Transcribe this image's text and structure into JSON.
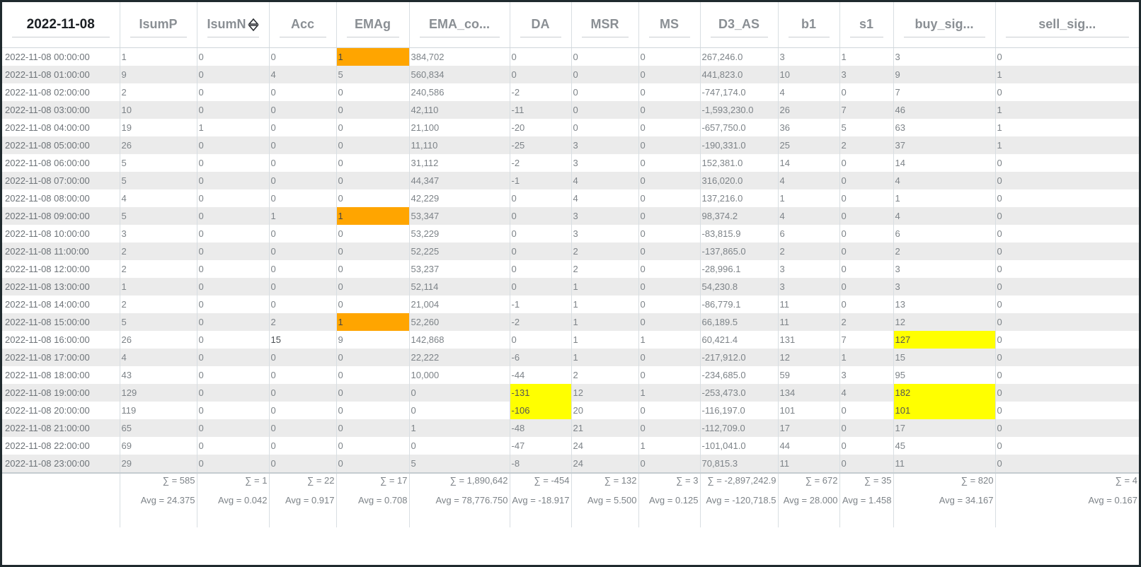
{
  "headers": [
    "2022-11-08",
    "IsumP",
    "IsumN",
    "Acc",
    "EMAg",
    "EMA_co...",
    "DA",
    "MSR",
    "MS",
    "D3_AS",
    "b1",
    "s1",
    "buy_sig...",
    "sell_sig..."
  ],
  "header_align": [
    "left",
    "left",
    "left",
    "left",
    "left",
    "left",
    "center",
    "center",
    "center",
    "left",
    "left",
    "center",
    "left",
    "left"
  ],
  "sort_icon_column": "IsumN",
  "rows": [
    [
      "2022-11-08 00:00:00",
      "1",
      "0",
      "0",
      "1",
      "384,702",
      "0",
      "0",
      "0",
      "267,246.0",
      "3",
      "1",
      "3",
      "0"
    ],
    [
      "2022-11-08 01:00:00",
      "9",
      "0",
      "4",
      "5",
      "560,834",
      "0",
      "0",
      "0",
      "441,823.0",
      "10",
      "3",
      "9",
      "1"
    ],
    [
      "2022-11-08 02:00:00",
      "2",
      "0",
      "0",
      "0",
      "240,586",
      "-2",
      "0",
      "0",
      "-747,174.0",
      "4",
      "0",
      "7",
      "0"
    ],
    [
      "2022-11-08 03:00:00",
      "10",
      "0",
      "0",
      "0",
      "42,110",
      "-11",
      "0",
      "0",
      "-1,593,230.0",
      "26",
      "7",
      "46",
      "1"
    ],
    [
      "2022-11-08 04:00:00",
      "19",
      "1",
      "0",
      "0",
      "21,100",
      "-20",
      "0",
      "0",
      "-657,750.0",
      "36",
      "5",
      "63",
      "1"
    ],
    [
      "2022-11-08 05:00:00",
      "26",
      "0",
      "0",
      "0",
      "11,110",
      "-25",
      "3",
      "0",
      "-190,331.0",
      "25",
      "2",
      "37",
      "1"
    ],
    [
      "2022-11-08 06:00:00",
      "5",
      "0",
      "0",
      "0",
      "31,112",
      "-2",
      "3",
      "0",
      "152,381.0",
      "14",
      "0",
      "14",
      "0"
    ],
    [
      "2022-11-08 07:00:00",
      "5",
      "0",
      "0",
      "0",
      "44,347",
      "-1",
      "4",
      "0",
      "316,020.0",
      "4",
      "0",
      "4",
      "0"
    ],
    [
      "2022-11-08 08:00:00",
      "4",
      "0",
      "0",
      "0",
      "42,229",
      "0",
      "4",
      "0",
      "137,216.0",
      "1",
      "0",
      "1",
      "0"
    ],
    [
      "2022-11-08 09:00:00",
      "5",
      "0",
      "1",
      "1",
      "53,347",
      "0",
      "3",
      "0",
      "98,374.2",
      "4",
      "0",
      "4",
      "0"
    ],
    [
      "2022-11-08 10:00:00",
      "3",
      "0",
      "0",
      "0",
      "53,229",
      "0",
      "3",
      "0",
      "-83,815.9",
      "6",
      "0",
      "6",
      "0"
    ],
    [
      "2022-11-08 11:00:00",
      "2",
      "0",
      "0",
      "0",
      "52,225",
      "0",
      "2",
      "0",
      "-137,865.0",
      "2",
      "0",
      "2",
      "0"
    ],
    [
      "2022-11-08 12:00:00",
      "2",
      "0",
      "0",
      "0",
      "53,237",
      "0",
      "2",
      "0",
      "-28,996.1",
      "3",
      "0",
      "3",
      "0"
    ],
    [
      "2022-11-08 13:00:00",
      "1",
      "0",
      "0",
      "0",
      "52,114",
      "0",
      "1",
      "0",
      "54,230.8",
      "3",
      "0",
      "3",
      "0"
    ],
    [
      "2022-11-08 14:00:00",
      "2",
      "0",
      "0",
      "0",
      "21,004",
      "-1",
      "1",
      "0",
      "-86,779.1",
      "11",
      "0",
      "13",
      "0"
    ],
    [
      "2022-11-08 15:00:00",
      "5",
      "0",
      "2",
      "1",
      "52,260",
      "-2",
      "1",
      "0",
      "66,189.5",
      "11",
      "2",
      "12",
      "0"
    ],
    [
      "2022-11-08 16:00:00",
      "26",
      "0",
      "15",
      "9",
      "142,868",
      "0",
      "1",
      "1",
      "60,421.4",
      "131",
      "7",
      "127",
      "0"
    ],
    [
      "2022-11-08 17:00:00",
      "4",
      "0",
      "0",
      "0",
      "22,222",
      "-6",
      "1",
      "0",
      "-217,912.0",
      "12",
      "1",
      "15",
      "0"
    ],
    [
      "2022-11-08 18:00:00",
      "43",
      "0",
      "0",
      "0",
      "10,000",
      "-44",
      "2",
      "0",
      "-234,685.0",
      "59",
      "3",
      "95",
      "0"
    ],
    [
      "2022-11-08 19:00:00",
      "129",
      "0",
      "0",
      "0",
      "0",
      "-131",
      "12",
      "1",
      "-253,473.0",
      "134",
      "4",
      "182",
      "0"
    ],
    [
      "2022-11-08 20:00:00",
      "119",
      "0",
      "0",
      "0",
      "0",
      "-106",
      "20",
      "0",
      "-116,197.0",
      "101",
      "0",
      "101",
      "0"
    ],
    [
      "2022-11-08 21:00:00",
      "65",
      "0",
      "0",
      "0",
      "1",
      "-48",
      "21",
      "0",
      "-112,709.0",
      "17",
      "0",
      "17",
      "0"
    ],
    [
      "2022-11-08 22:00:00",
      "69",
      "0",
      "0",
      "0",
      "0",
      "-47",
      "24",
      "1",
      "-101,041.0",
      "44",
      "0",
      "45",
      "0"
    ],
    [
      "2022-11-08 23:00:00",
      "29",
      "0",
      "0",
      "0",
      "5",
      "-8",
      "24",
      "0",
      "70,815.3",
      "11",
      "0",
      "11",
      "0"
    ]
  ],
  "highlights": [
    {
      "row": 0,
      "col": 4,
      "color": "#ffa500"
    },
    {
      "row": 9,
      "col": 4,
      "color": "#ffa500"
    },
    {
      "row": 15,
      "col": 4,
      "color": "#ffa500"
    },
    {
      "row": 16,
      "col": 12,
      "color": "#ffff00"
    },
    {
      "row": 19,
      "col": 6,
      "color": "#ffff00"
    },
    {
      "row": 19,
      "col": 12,
      "color": "#ffff00"
    },
    {
      "row": 20,
      "col": 6,
      "color": "#ffff00"
    },
    {
      "row": 20,
      "col": 12,
      "color": "#ffff00"
    }
  ],
  "sums": [
    "",
    "∑ = 585",
    "∑ = 1",
    "∑ = 22",
    "∑ = 17",
    "∑ = 1,890,642",
    "∑ = -454",
    "∑ = 132",
    "∑ = 3",
    "∑ = -2,897,242.9",
    "∑ = 672",
    "∑ = 35",
    "∑ = 820",
    "∑ = 4"
  ],
  "avgs": [
    "",
    "Avg = 24.375",
    "Avg = 0.042",
    "Avg = 0.917",
    "Avg = 0.708",
    "Avg = 78,776.750",
    "Avg = -18.917",
    "Avg = 5.500",
    "Avg = 0.125",
    "Avg = -120,718.5",
    "Avg = 28.000",
    "Avg = 1.458",
    "Avg = 34.167",
    "Avg = 0.167"
  ],
  "colors": {
    "orange": "#ffa500",
    "yellow": "#ffff00",
    "stripe": "#ebebeb",
    "frame": "#1f2a2e"
  }
}
